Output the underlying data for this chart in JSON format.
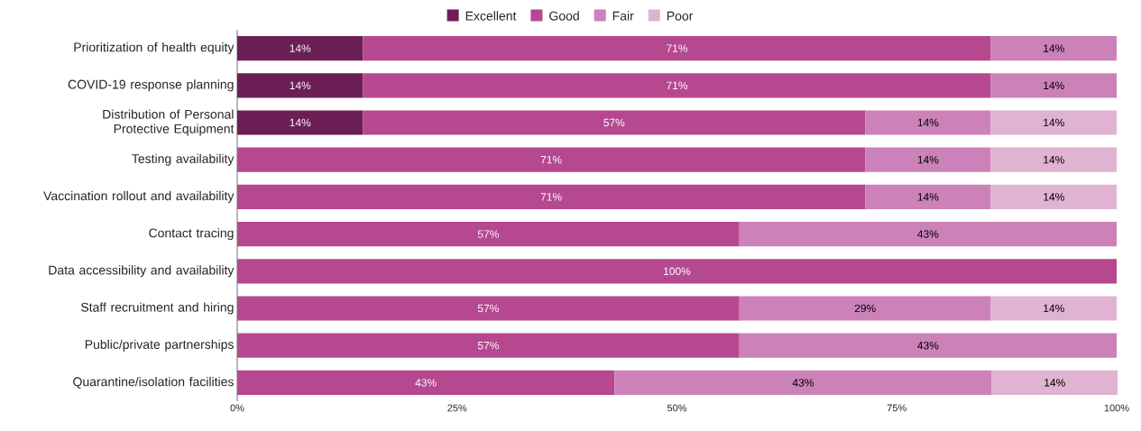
{
  "chart_data": {
    "type": "bar",
    "orientation": "horizontal",
    "stacked": true,
    "categories": [
      "Prioritization of health equity",
      "COVID-19 response planning",
      "Distribution of Personal Protective Equipment",
      "Testing availability",
      "Vaccination rollout and availability",
      "Contact tracing",
      "Data accessibility and availability",
      "Staff recruitment and hiring",
      "Public/private partnerships",
      "Quarantine/isolation facilities"
    ],
    "series": [
      {
        "name": "Excellent",
        "color": "#6b1f55",
        "values": [
          14.3,
          14.3,
          14.3,
          null,
          null,
          null,
          null,
          null,
          null,
          null
        ],
        "value_labels": [
          "14%",
          "14%",
          "14%",
          null,
          null,
          null,
          null,
          null,
          null,
          null
        ]
      },
      {
        "name": "Good",
        "color": "#b5488f",
        "values": [
          71.4,
          71.4,
          57.1,
          71.4,
          71.4,
          57.1,
          100,
          57.1,
          57.1,
          42.9
        ],
        "value_labels": [
          "71%",
          "71%",
          "57%",
          "71%",
          "71%",
          "57%",
          "100%",
          "57%",
          "57%",
          "43%"
        ]
      },
      {
        "name": "Fair",
        "color": "#cc82b8",
        "values": [
          14.3,
          14.3,
          14.3,
          14.3,
          14.3,
          42.9,
          null,
          28.6,
          42.9,
          42.9
        ],
        "value_labels": [
          "14%",
          "14%",
          "14%",
          "14%",
          "14%",
          "43%",
          null,
          "29%",
          "43%",
          "43%"
        ]
      },
      {
        "name": "Poor",
        "color": "#e0b3d2",
        "values": [
          null,
          null,
          14.3,
          14.3,
          14.3,
          null,
          null,
          14.3,
          null,
          14.3
        ],
        "value_labels": [
          null,
          null,
          "14%",
          "14%",
          "14%",
          null,
          null,
          "14%",
          null,
          "14%"
        ]
      }
    ],
    "xlim": [
      0,
      100
    ],
    "xticks": [
      {
        "value": 0,
        "label": "0%"
      },
      {
        "value": 25,
        "label": "25%"
      },
      {
        "value": 50,
        "label": "50%"
      },
      {
        "value": 75,
        "label": "75%"
      },
      {
        "value": 100,
        "label": "100%"
      }
    ],
    "legend": "top"
  }
}
